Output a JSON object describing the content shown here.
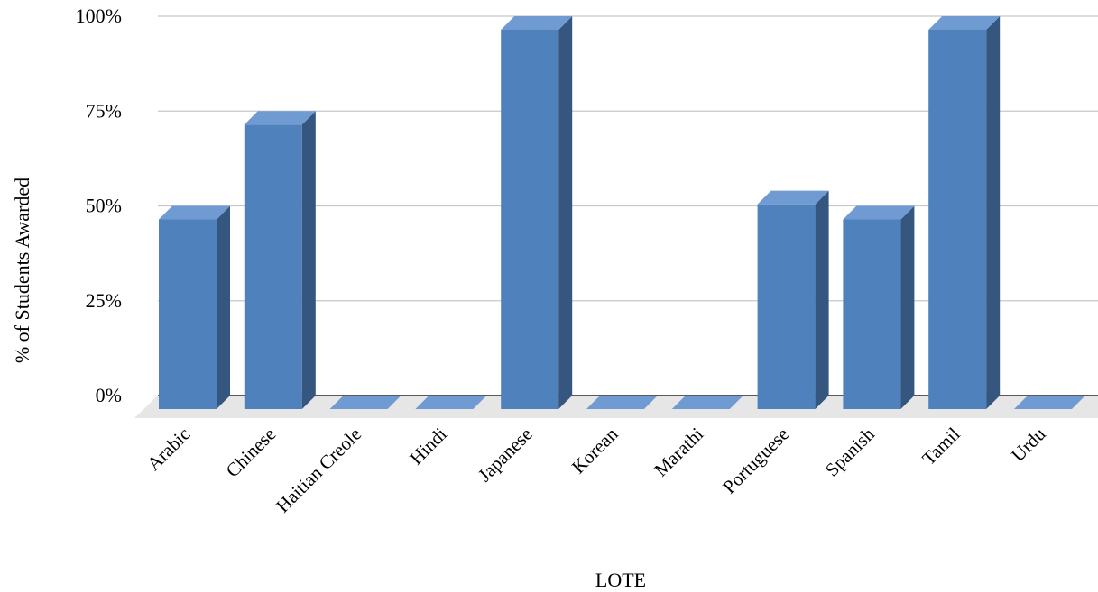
{
  "chart_data": {
    "type": "bar",
    "title": "",
    "xlabel": "LOTE",
    "ylabel": "% of Students Awarded",
    "categories": [
      "Arabic",
      "Chinese",
      "Haitian Creole",
      "Hindi",
      "Japanese",
      "Korean",
      "Marathi",
      "Portuguese",
      "Spanish",
      "Tamil",
      "Urdu"
    ],
    "values": [
      50,
      75,
      0,
      0,
      100,
      0,
      0,
      54,
      50,
      100,
      0
    ],
    "ylim": [
      0,
      100
    ],
    "yticks": [
      0,
      25,
      50,
      75,
      100
    ],
    "ytick_labels": [
      "0%",
      "25%",
      "50%",
      "75%",
      "100%"
    ],
    "grid": true,
    "style": "3d-column",
    "colors": {
      "bar_front": "#4f81bd",
      "bar_top": "#6f9bd2",
      "bar_side": "#34567f",
      "floor": "#e6e6e6"
    }
  }
}
